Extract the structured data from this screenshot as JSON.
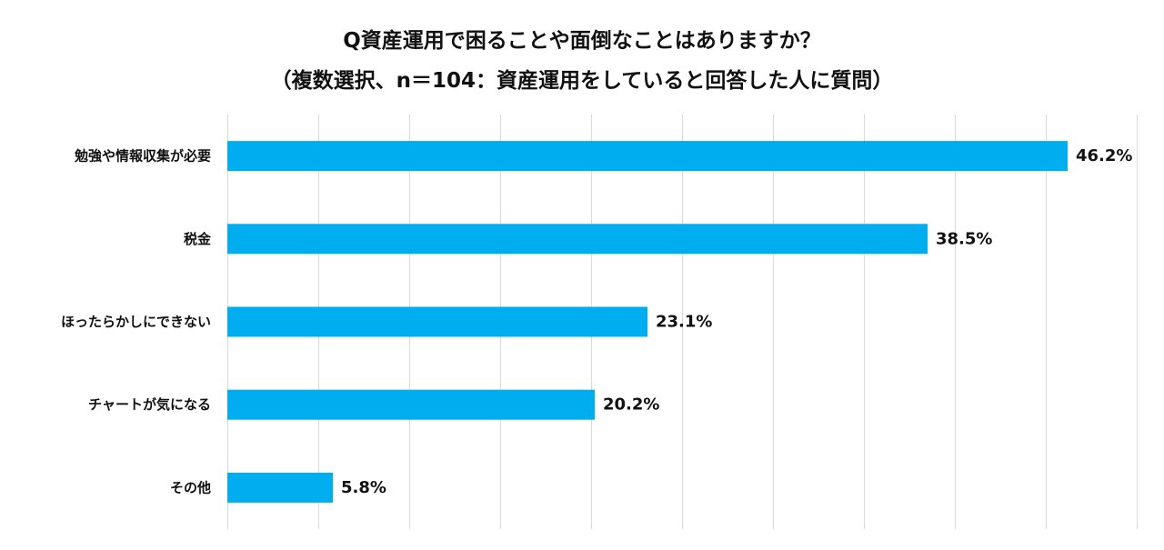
{
  "chart_data": {
    "type": "bar",
    "orientation": "horizontal",
    "title": "Q資産運用で困ることや面倒なことはありますか？",
    "subtitle": "（複数選択、n＝104：資産運用をしていると回答した人に質問）",
    "categories": [
      "勉強や情報収集が必要",
      "税金",
      "ほったらかしにできない",
      "チャートが気になる",
      "その他"
    ],
    "values": [
      46.2,
      38.5,
      23.1,
      20.2,
      5.8
    ],
    "value_labels": [
      "46.2%",
      "38.5%",
      "23.1%",
      "20.2%",
      "5.8%"
    ],
    "xlim": [
      0,
      50
    ],
    "grid": true,
    "bar_color": "#00aeef"
  }
}
